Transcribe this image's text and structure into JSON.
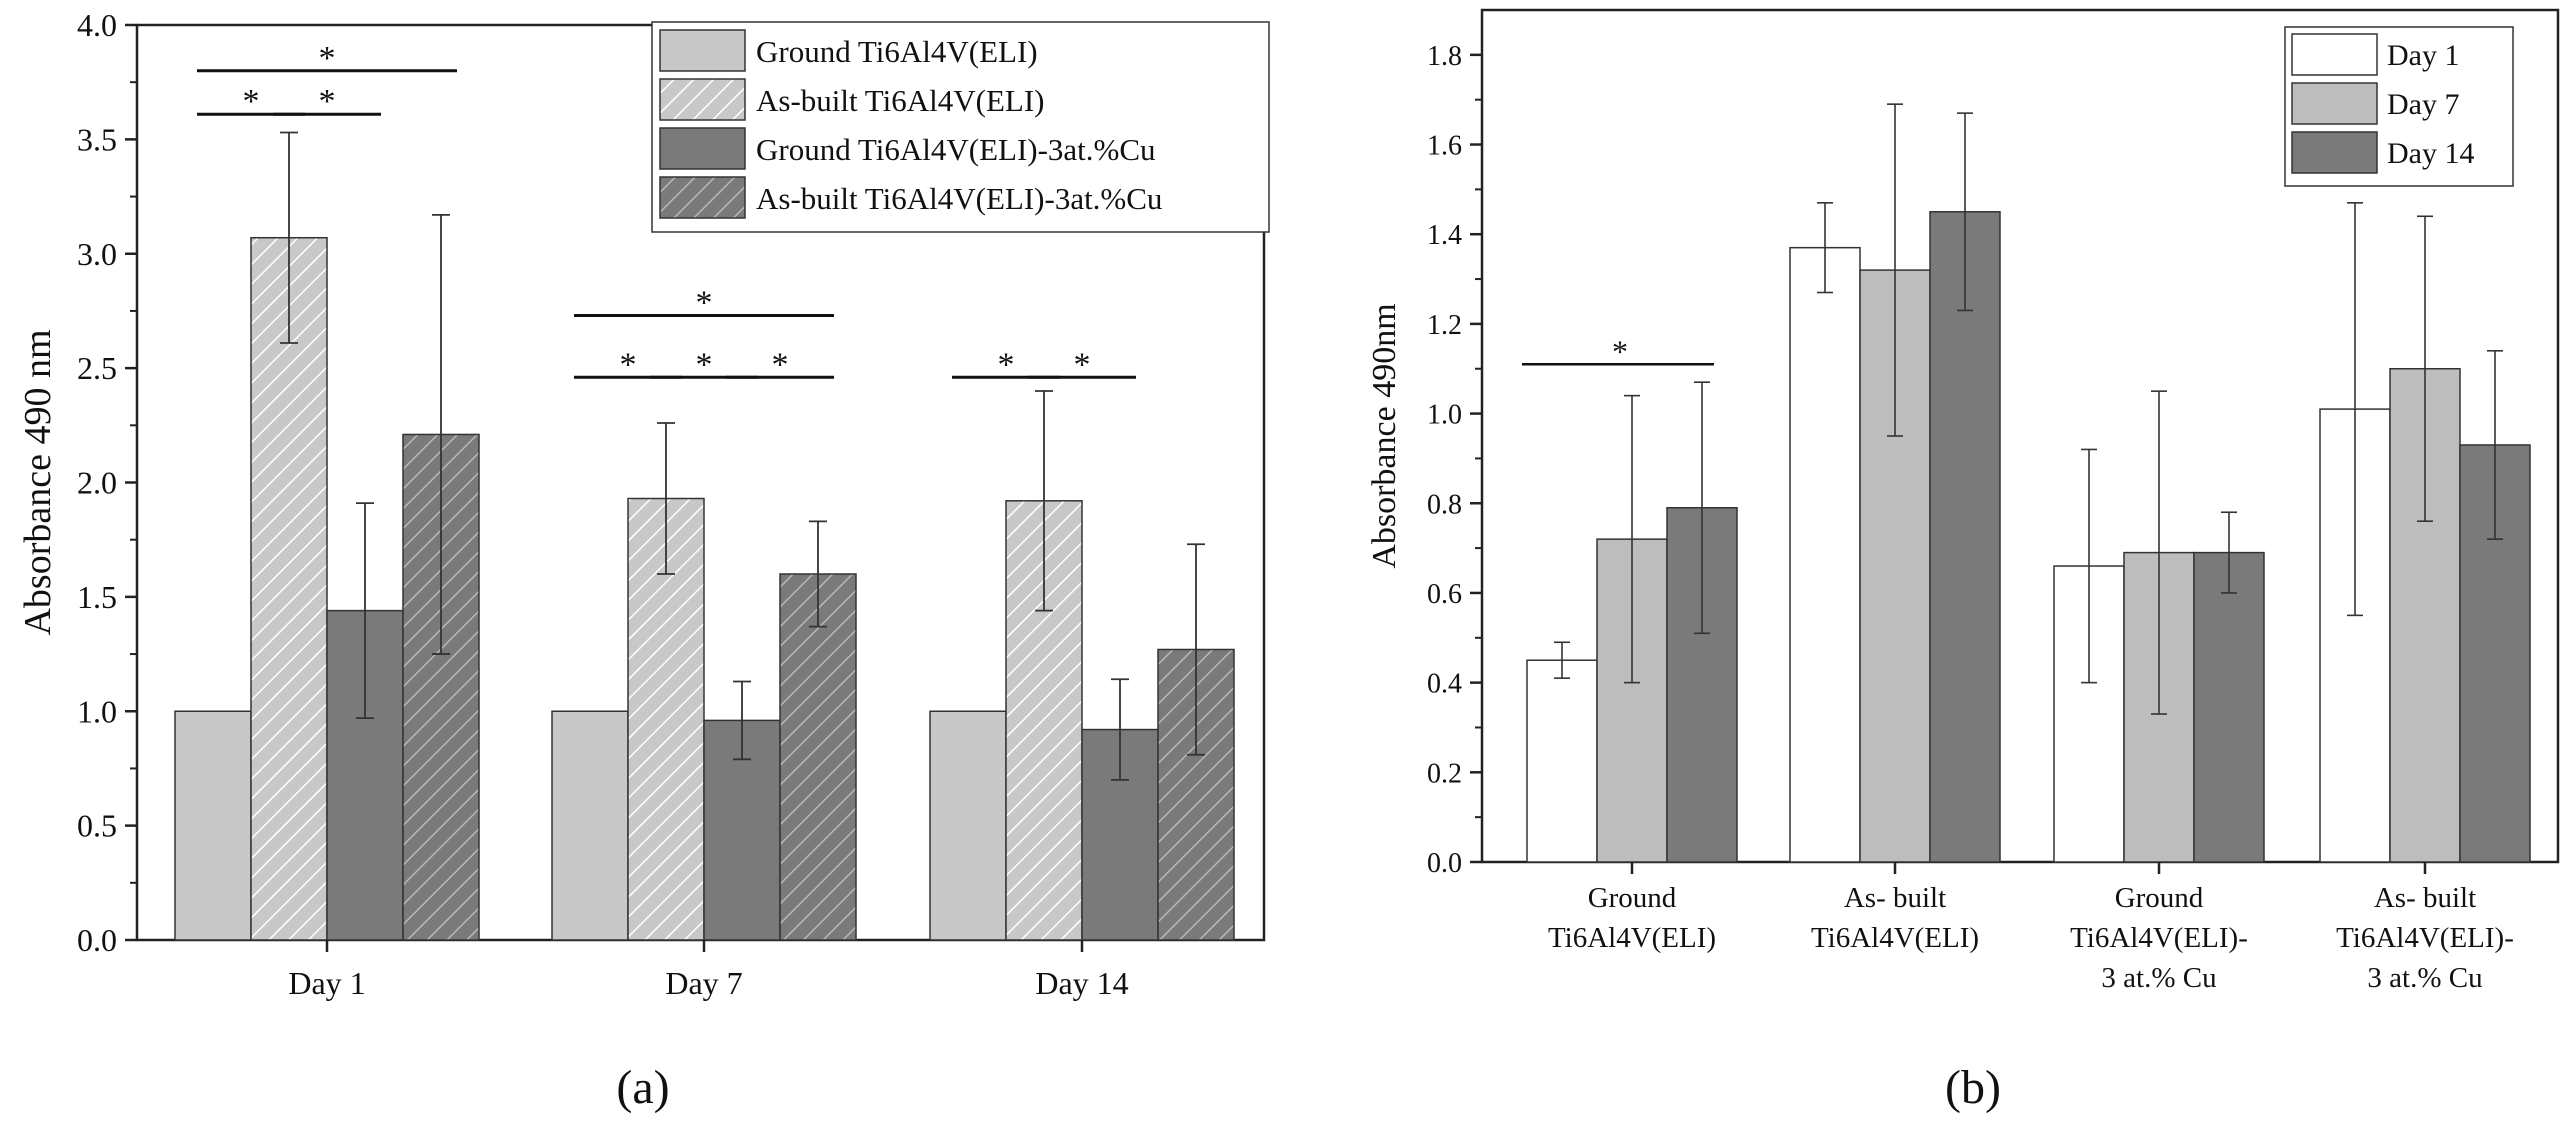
{
  "chart_data": [
    {
      "panel_label": "(a)",
      "type": "bar",
      "ylabel": "Absorbance 490 nm",
      "xlabel": "",
      "ylim": [
        0,
        4.0
      ],
      "yticks": [
        "0.0",
        "0.5",
        "1.0",
        "1.5",
        "2.0",
        "2.5",
        "3.0",
        "3.5",
        "4.0"
      ],
      "categories": [
        "Day 1",
        "Day 7",
        "Day 14"
      ],
      "legend_position": "top-right",
      "series": [
        {
          "name": "Ground Ti6Al4V(ELI)",
          "fill": "#c8c8c8",
          "hatch": false,
          "values": [
            1.0,
            1.0,
            1.0
          ],
          "errors": [
            null,
            null,
            null
          ]
        },
        {
          "name": "As-built Ti6Al4V(ELI)",
          "fill": "#c8c8c8",
          "hatch": true,
          "values": [
            3.07,
            1.93,
            1.92
          ],
          "errors": [
            0.46,
            0.33,
            0.48
          ]
        },
        {
          "name": "Ground Ti6Al4V(ELI)-3at.%Cu",
          "fill": "#7a7a7a",
          "hatch": false,
          "values": [
            1.44,
            0.96,
            0.92
          ],
          "errors": [
            0.47,
            0.17,
            0.22
          ]
        },
        {
          "name": "As-built Ti6Al4V(ELI)-3at.%Cu",
          "fill": "#7a7a7a",
          "hatch": true,
          "values": [
            2.21,
            1.6,
            1.27
          ],
          "errors": [
            0.96,
            0.23,
            0.46
          ]
        }
      ],
      "significance": [
        {
          "group": 0,
          "from": 0,
          "to": 3,
          "level": 3.8,
          "label": "*"
        },
        {
          "group": 0,
          "from": 0,
          "to": 1,
          "level": 3.61,
          "label": "*"
        },
        {
          "group": 0,
          "from": 1,
          "to": 2,
          "level": 3.61,
          "label": "*"
        },
        {
          "group": 1,
          "from": 0,
          "to": 3,
          "level": 2.73,
          "label": "*"
        },
        {
          "group": 1,
          "from": 0,
          "to": 1,
          "level": 2.46,
          "label": "*"
        },
        {
          "group": 1,
          "from": 1,
          "to": 2,
          "level": 2.46,
          "label": "*"
        },
        {
          "group": 1,
          "from": 2,
          "to": 3,
          "level": 2.46,
          "label": "*"
        },
        {
          "group": 2,
          "from": 0,
          "to": 1,
          "level": 2.46,
          "label": "*"
        },
        {
          "group": 2,
          "from": 1,
          "to": 2,
          "level": 2.46,
          "label": "*"
        }
      ]
    },
    {
      "panel_label": "(b)",
      "type": "bar",
      "ylabel": "Absorbance 490nm",
      "xlabel": "",
      "ylim": [
        0,
        1.9
      ],
      "yticks": [
        "0.0",
        "0.2",
        "0.4",
        "0.6",
        "0.8",
        "1.0",
        "1.2",
        "1.4",
        "1.6",
        "1.8"
      ],
      "categories": [
        [
          "Ground",
          "Ti6Al4V(ELI)"
        ],
        [
          "As- built",
          "Ti6Al4V(ELI)"
        ],
        [
          "Ground",
          "Ti6Al4V(ELI)-",
          "3 at.% Cu"
        ],
        [
          "As- built",
          "Ti6Al4V(ELI)-",
          "3 at.% Cu"
        ]
      ],
      "legend_position": "top-right",
      "series": [
        {
          "name": "Day 1",
          "fill": "#ffffff",
          "values": [
            0.45,
            1.37,
            0.66,
            1.01
          ],
          "errors": [
            0.04,
            0.1,
            0.26,
            0.46
          ]
        },
        {
          "name": "Day 7",
          "fill": "#bdbdbd",
          "values": [
            0.72,
            1.32,
            0.69,
            1.1
          ],
          "errors": [
            0.32,
            0.37,
            0.36,
            0.34
          ]
        },
        {
          "name": "Day 14",
          "fill": "#7a7a7a",
          "values": [
            0.79,
            1.45,
            0.69,
            0.93
          ],
          "errors": [
            0.28,
            0.22,
            0.09,
            0.21
          ]
        }
      ],
      "significance": [
        {
          "group": 0,
          "from": 0,
          "to": 2,
          "level": 1.11,
          "label": "*"
        }
      ]
    }
  ]
}
